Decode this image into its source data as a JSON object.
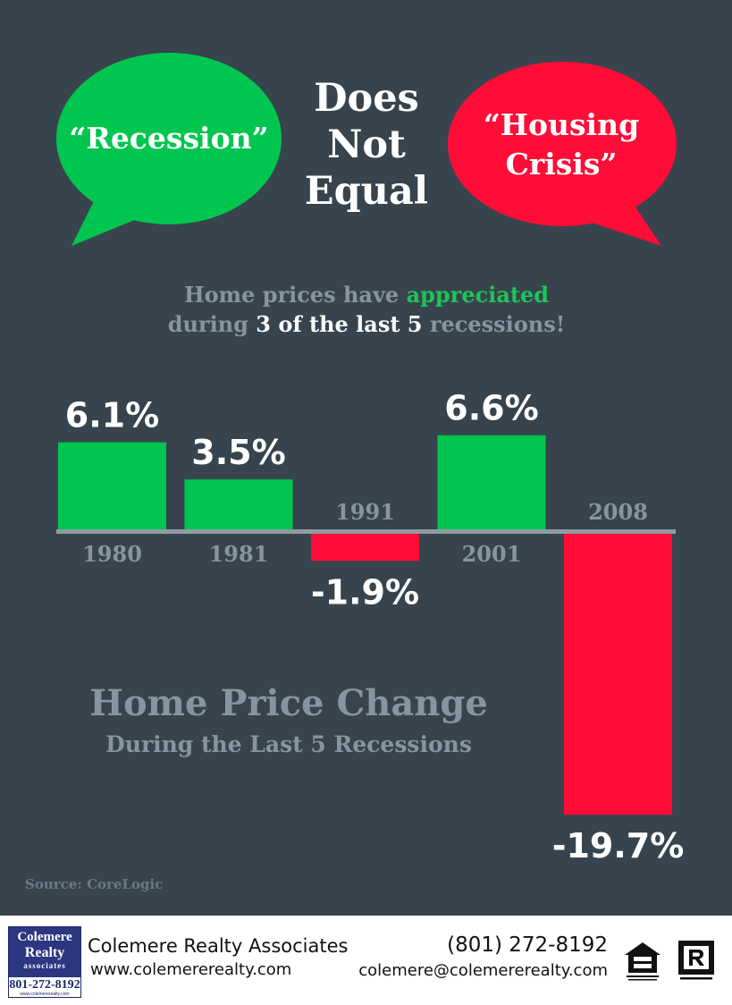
{
  "headline": {
    "left_bubble": "“Recession”",
    "center_words": [
      "Does",
      "Not",
      "Equal"
    ],
    "right_bubble_line1": "“Housing",
    "right_bubble_line2": "Crisis”"
  },
  "subtitle": {
    "line1_pre": "Home prices have ",
    "line1_highlight": "appreciated",
    "line2_pre": "during ",
    "line2_highlight": "3 of the last 5",
    "line2_post": " recessions!"
  },
  "colors": {
    "background": "#37444d",
    "positive": "#00c650",
    "negative": "#ff0d37",
    "muted_text": "#86959f",
    "baseline": "#8f9ca4"
  },
  "chart_data": {
    "type": "bar",
    "title": "Home Price Change",
    "subtitle": "During the Last 5 Recessions",
    "categories": [
      "1980",
      "1981",
      "1991",
      "2001",
      "2008"
    ],
    "values": [
      6.1,
      3.5,
      -1.9,
      6.6,
      -19.7
    ],
    "value_labels": [
      "6.1%",
      "3.5%",
      "-1.9%",
      "6.6%",
      "-19.7%"
    ],
    "grid": false
  },
  "source": "Source: CoreLogic",
  "footer": {
    "logo_line1": "Colemere",
    "logo_line2": "Realty",
    "logo_line3": "associates",
    "logo_phone": "801-272-8192",
    "logo_url": "www.colemererealty.com",
    "company": "Colemere Realty Associates",
    "website": "www.colemererealty.com",
    "phone": "(801) 272-8192",
    "email": "colemere@colemererealty.com",
    "icons": [
      "equal-housing-opportunity-icon",
      "realtor-icon"
    ]
  }
}
